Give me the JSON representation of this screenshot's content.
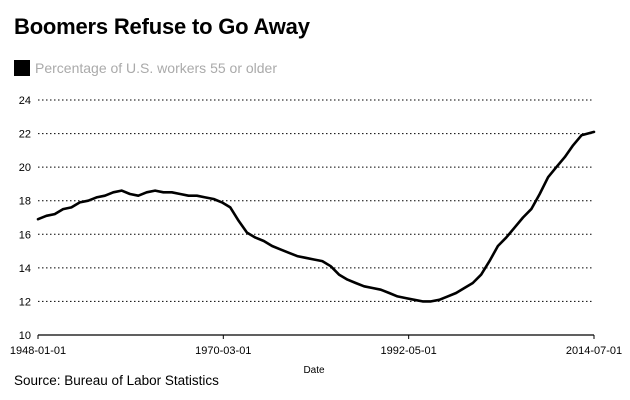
{
  "chart_data": {
    "type": "line",
    "title": "Boomers Refuse to Go Away",
    "xlabel": "Date",
    "ylabel": "",
    "ylim": [
      10,
      24
    ],
    "yticks": [
      10,
      12,
      14,
      16,
      18,
      20,
      22,
      24
    ],
    "xticks": [
      "1948-01-01",
      "1970-03-01",
      "1992-05-01",
      "2014-07-01"
    ],
    "x_range": [
      "1948-01-01",
      "2014-07-01"
    ],
    "grid": "horizontal dotted",
    "legend": "top-left",
    "series_color": "#000000",
    "series": [
      {
        "name": "Percentage of U.S. workers 55 or older",
        "points": [
          [
            "1948-01-01",
            16.9
          ],
          [
            "1949-01-01",
            17.1
          ],
          [
            "1950-01-01",
            17.2
          ],
          [
            "1951-01-01",
            17.5
          ],
          [
            "1952-01-01",
            17.6
          ],
          [
            "1953-01-01",
            17.9
          ],
          [
            "1954-01-01",
            18.0
          ],
          [
            "1955-01-01",
            18.2
          ],
          [
            "1956-01-01",
            18.3
          ],
          [
            "1957-01-01",
            18.5
          ],
          [
            "1958-01-01",
            18.6
          ],
          [
            "1959-01-01",
            18.4
          ],
          [
            "1960-01-01",
            18.3
          ],
          [
            "1961-01-01",
            18.5
          ],
          [
            "1962-01-01",
            18.6
          ],
          [
            "1963-01-01",
            18.5
          ],
          [
            "1964-01-01",
            18.5
          ],
          [
            "1965-01-01",
            18.4
          ],
          [
            "1966-01-01",
            18.3
          ],
          [
            "1967-01-01",
            18.3
          ],
          [
            "1968-01-01",
            18.2
          ],
          [
            "1969-01-01",
            18.1
          ],
          [
            "1970-01-01",
            17.9
          ],
          [
            "1971-01-01",
            17.6
          ],
          [
            "1972-01-01",
            16.8
          ],
          [
            "1973-01-01",
            16.1
          ],
          [
            "1974-01-01",
            15.8
          ],
          [
            "1975-01-01",
            15.6
          ],
          [
            "1976-01-01",
            15.3
          ],
          [
            "1977-01-01",
            15.1
          ],
          [
            "1978-01-01",
            14.9
          ],
          [
            "1979-01-01",
            14.7
          ],
          [
            "1980-01-01",
            14.6
          ],
          [
            "1981-01-01",
            14.5
          ],
          [
            "1982-01-01",
            14.4
          ],
          [
            "1983-01-01",
            14.1
          ],
          [
            "1984-01-01",
            13.6
          ],
          [
            "1985-01-01",
            13.3
          ],
          [
            "1986-01-01",
            13.1
          ],
          [
            "1987-01-01",
            12.9
          ],
          [
            "1988-01-01",
            12.8
          ],
          [
            "1989-01-01",
            12.7
          ],
          [
            "1990-01-01",
            12.5
          ],
          [
            "1991-01-01",
            12.3
          ],
          [
            "1992-01-01",
            12.2
          ],
          [
            "1993-01-01",
            12.1
          ],
          [
            "1994-01-01",
            12.0
          ],
          [
            "1995-01-01",
            12.0
          ],
          [
            "1996-01-01",
            12.1
          ],
          [
            "1997-01-01",
            12.3
          ],
          [
            "1998-01-01",
            12.5
          ],
          [
            "1999-01-01",
            12.8
          ],
          [
            "2000-01-01",
            13.1
          ],
          [
            "2001-01-01",
            13.6
          ],
          [
            "2002-01-01",
            14.4
          ],
          [
            "2003-01-01",
            15.3
          ],
          [
            "2004-01-01",
            15.8
          ],
          [
            "2005-01-01",
            16.4
          ],
          [
            "2006-01-01",
            17.0
          ],
          [
            "2007-01-01",
            17.5
          ],
          [
            "2008-01-01",
            18.4
          ],
          [
            "2009-01-01",
            19.4
          ],
          [
            "2010-01-01",
            20.0
          ],
          [
            "2011-01-01",
            20.6
          ],
          [
            "2012-01-01",
            21.3
          ],
          [
            "2013-01-01",
            21.9
          ],
          [
            "2014-07-01",
            22.1
          ]
        ]
      }
    ]
  },
  "source_note": "Source: Bureau of Labor Statistics"
}
